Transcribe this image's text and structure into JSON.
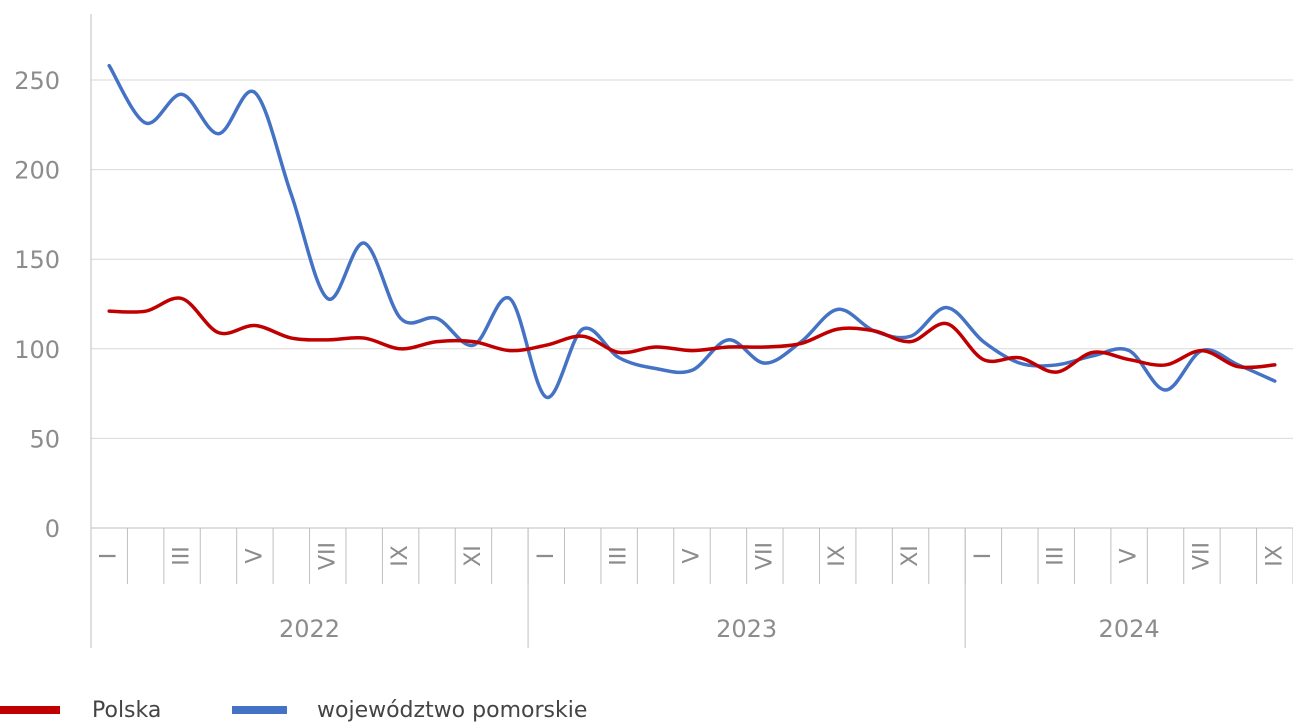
{
  "chart_data": {
    "type": "line",
    "xlabel": "",
    "ylabel": "",
    "ylim": [
      0,
      250
    ],
    "yticks": [
      0,
      50,
      100,
      150,
      200,
      250
    ],
    "grid": true,
    "legend_position": "bottom-left",
    "years": [
      "2022",
      "2023",
      "2024"
    ],
    "month_labels": [
      "I",
      "",
      "III",
      "",
      "V",
      "",
      "VII",
      "",
      "IX",
      "",
      "XI",
      "",
      "I",
      "",
      "III",
      "",
      "V",
      "",
      "VII",
      "",
      "IX",
      "",
      "XI",
      "",
      "I",
      "",
      "III",
      "",
      "V",
      "",
      "VII",
      "",
      "IX"
    ],
    "x": [
      "2022-01",
      "2022-02",
      "2022-03",
      "2022-04",
      "2022-05",
      "2022-06",
      "2022-07",
      "2022-08",
      "2022-09",
      "2022-10",
      "2022-11",
      "2022-12",
      "2023-01",
      "2023-02",
      "2023-03",
      "2023-04",
      "2023-05",
      "2023-06",
      "2023-07",
      "2023-08",
      "2023-09",
      "2023-10",
      "2023-11",
      "2023-12",
      "2024-01",
      "2024-02",
      "2024-03",
      "2024-04",
      "2024-05",
      "2024-06",
      "2024-07",
      "2024-08",
      "2024-09"
    ],
    "series": [
      {
        "name": "Polska",
        "color": "#C00000",
        "values": [
          121,
          121,
          128,
          109,
          113,
          106,
          105,
          106,
          100,
          104,
          104,
          99,
          102,
          107,
          98,
          101,
          99,
          101,
          101,
          103,
          111,
          110,
          104,
          114,
          94,
          95,
          87,
          98,
          94,
          91,
          99,
          90,
          91
        ]
      },
      {
        "name": "województwo pomorskie",
        "color": "#4472C4",
        "values": [
          258,
          226,
          242,
          220,
          243,
          186,
          128,
          159,
          117,
          117,
          102,
          128,
          73,
          111,
          95,
          89,
          88,
          105,
          92,
          104,
          122,
          110,
          107,
          123,
          104,
          92,
          91,
          96,
          99,
          77,
          99,
          91,
          82
        ]
      }
    ]
  }
}
